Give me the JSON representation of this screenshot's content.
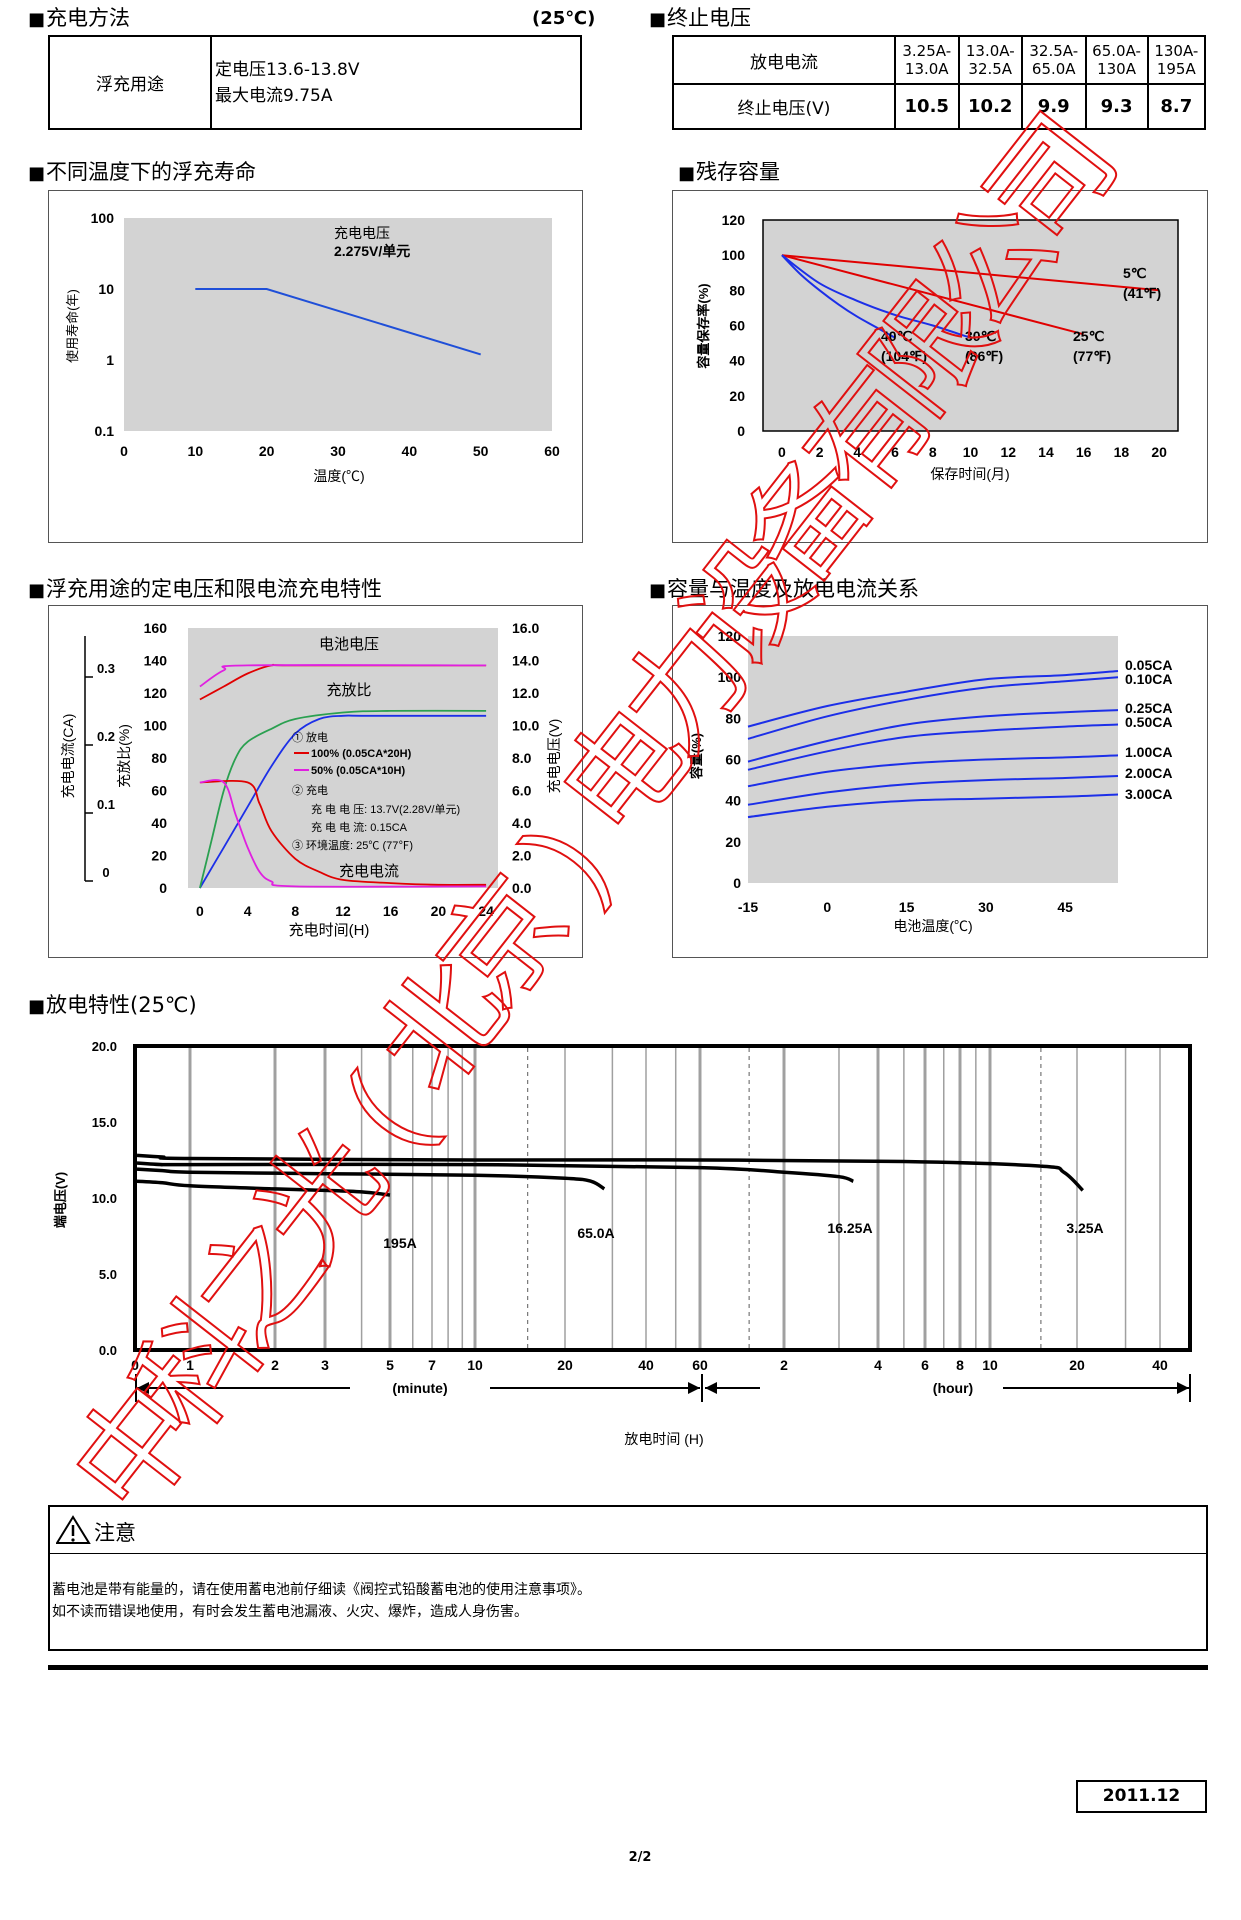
{
  "charge_method": {
    "title": "充电方法",
    "temp": "(25℃)",
    "row_label": "浮充用途",
    "voltage": "定电压13.6-13.8V",
    "max_current": "最大电流9.75A"
  },
  "cutoff": {
    "title": "终止电压",
    "col1_label": "放电电流",
    "row2_label": "终止电压(V)",
    "ranges": [
      "3.25A-13.0A",
      "13.0A-32.5A",
      "32.5A-65.0A",
      "65.0A-130A",
      "130A-195A"
    ],
    "voltages": [
      "10.5",
      "10.2",
      "9.9",
      "9.3",
      "8.7"
    ]
  },
  "titles": {
    "float_life": "不同温度下的浮充寿命",
    "residual": "残存容量",
    "float_charge": "浮充用途的定电压和限电流充电特性",
    "capacity_temp": "容量与温度及放电电流关系",
    "discharge": "放电特性(25℃)"
  },
  "chart_data": [
    {
      "type": "line",
      "title": "不同温度下的浮充寿命",
      "xlabel": "温度(℃)",
      "ylabel": "使用寿命(年)",
      "x_ticks": [
        "0",
        "10",
        "20",
        "30",
        "40",
        "50",
        "60"
      ],
      "y_ticks": [
        "0.1",
        "1",
        "10",
        "100"
      ],
      "xlim": [
        0,
        60
      ],
      "ylim": [
        0.1,
        100
      ],
      "y_scale": "log",
      "annotation": "充电电压",
      "annotation2": "2.275V/单元",
      "series": [
        {
          "x": [
            10,
            20,
            50
          ],
          "y": [
            10,
            10,
            1.2
          ],
          "color": "#1f4fd8"
        }
      ]
    },
    {
      "type": "line",
      "title": "残存容量",
      "xlabel": "保存时间(月)",
      "ylabel": "容量保存率(%)",
      "x_ticks": [
        "0",
        "2",
        "4",
        "6",
        "8",
        "10",
        "12",
        "14",
        "16",
        "18",
        "20"
      ],
      "y_ticks": [
        "0",
        "20",
        "40",
        "60",
        "80",
        "100",
        "120"
      ],
      "xlim": [
        -1,
        21
      ],
      "ylim": [
        0,
        120
      ],
      "series": [
        {
          "name": "5℃",
          "name2": "(41℉)",
          "color": "#e00000",
          "x": [
            0,
            20
          ],
          "y": [
            100,
            80
          ]
        },
        {
          "name": "25℃",
          "name2": "(77℉)",
          "color": "#e00000",
          "x": [
            0,
            16
          ],
          "y": [
            100,
            55
          ]
        },
        {
          "name": "30℃",
          "name2": "(86℉)",
          "color": "#1c2fe8",
          "x": [
            0,
            2,
            4,
            6,
            8,
            10
          ],
          "y": [
            100,
            84,
            74,
            66,
            60,
            53
          ]
        },
        {
          "name": "40℃",
          "name2": "(104℉)",
          "color": "#1c2fe8",
          "x": [
            0,
            1,
            2,
            3,
            4,
            5,
            6
          ],
          "y": [
            100,
            89,
            80,
            72,
            65,
            59,
            53
          ]
        }
      ]
    },
    {
      "type": "line",
      "title": "浮充用途的定电压和限电流充电特性",
      "xlabel": "充电时间(H)",
      "ylabel_left_current": "充电电流(CA)",
      "ylabel_left_ratio": "充放比(%)",
      "ylabel_right": "充电电压(V)",
      "x_ticks": [
        "0",
        "4",
        "8",
        "12",
        "16",
        "20",
        "24"
      ],
      "ratio_ticks": [
        "0",
        "20",
        "40",
        "60",
        "80",
        "100",
        "120",
        "140",
        "160"
      ],
      "current_ticks": [
        "0",
        "0.1",
        "0.2",
        "0.3"
      ],
      "voltage_ticks": [
        "0.0",
        "2.0",
        "4.0",
        "6.0",
        "8.0",
        "10.0",
        "12.0",
        "14.0",
        "16.0"
      ],
      "xlim": [
        -1,
        25
      ],
      "ylim_ratio": [
        0,
        160
      ],
      "label_voltage": "电池电压",
      "label_ratio": "充放比",
      "label_current": "充电电流",
      "legend": {
        "l1": "① 放电",
        "l2": "100% (0.05CA*20H)",
        "l3": "50% (0.05CA*10H)",
        "l4": "② 充电",
        "l5": "充 电 电 压: 13.7V(2.28V/单元)",
        "l6": "充 电 电 流: 0.15CA",
        "l7": "③ 环境温度: 25℃ (77℉)"
      },
      "series": [
        {
          "role": "battery voltage 100%",
          "color": "#e00000",
          "x": [
            0,
            2,
            4,
            6,
            8,
            24
          ],
          "y": [
            116,
            124,
            132,
            137,
            137,
            137
          ]
        },
        {
          "role": "battery voltage 50%",
          "color": "#e020e0",
          "x": [
            0,
            2,
            4,
            24
          ],
          "y": [
            124,
            134,
            137,
            137
          ]
        },
        {
          "role": "charge ratio 100%",
          "color": "#1c2fe8",
          "x": [
            0,
            2,
            4,
            6,
            8,
            10,
            12,
            14,
            24
          ],
          "y": [
            0,
            25,
            50,
            75,
            95,
            104,
            106,
            106,
            106
          ]
        },
        {
          "role": "charge ratio 50%",
          "color": "#2aa050",
          "x": [
            0,
            1,
            2,
            3,
            4,
            6,
            8,
            12,
            16,
            24
          ],
          "y": [
            0,
            30,
            60,
            80,
            90,
            98,
            104,
            108,
            109,
            109
          ]
        },
        {
          "role": "charge current 100%",
          "color": "#e00000",
          "x": [
            0,
            4,
            5,
            6,
            8,
            10,
            12,
            16,
            20,
            24
          ],
          "y": [
            65,
            65,
            52,
            35,
            18,
            10,
            5,
            3,
            2,
            2
          ]
        },
        {
          "role": "charge current 50%",
          "color": "#e020e0",
          "x": [
            0,
            2,
            3,
            4,
            5,
            6,
            8,
            24
          ],
          "y": [
            65,
            65,
            45,
            25,
            10,
            4,
            1,
            1
          ]
        }
      ]
    },
    {
      "type": "line",
      "title": "容量与温度及放电电流关系",
      "xlabel": "电池温度(℃)",
      "ylabel": "容量(%)",
      "x_ticks": [
        "-15",
        "0",
        "15",
        "30",
        "45"
      ],
      "y_ticks": [
        "0",
        "20",
        "40",
        "60",
        "80",
        "100",
        "120"
      ],
      "xlim": [
        -15,
        55
      ],
      "ylim": [
        0,
        120
      ],
      "series": [
        {
          "name": "0.05CA",
          "color": "#1c2fe8",
          "x": [
            -15,
            0,
            15,
            30,
            45,
            55
          ],
          "y": [
            76,
            86,
            93,
            99,
            101,
            103
          ]
        },
        {
          "name": "0.10CA",
          "color": "#1c2fe8",
          "x": [
            -15,
            0,
            15,
            30,
            45,
            55
          ],
          "y": [
            70,
            81,
            89,
            95,
            98,
            100
          ]
        },
        {
          "name": "0.25CA",
          "color": "#1c2fe8",
          "x": [
            -15,
            0,
            15,
            30,
            45,
            55
          ],
          "y": [
            59,
            69,
            77,
            81,
            83,
            84
          ]
        },
        {
          "name": "0.50CA",
          "color": "#1c2fe8",
          "x": [
            -15,
            0,
            15,
            30,
            45,
            55
          ],
          "y": [
            55,
            64,
            71,
            74,
            76,
            77
          ]
        },
        {
          "name": "1.00CA",
          "color": "#1c2fe8",
          "x": [
            -15,
            0,
            15,
            30,
            45,
            55
          ],
          "y": [
            47,
            54,
            58,
            60,
            61,
            62
          ]
        },
        {
          "name": "2.00CA",
          "color": "#1c2fe8",
          "x": [
            -15,
            0,
            15,
            30,
            45,
            55
          ],
          "y": [
            38,
            44,
            48,
            50,
            51,
            52
          ]
        },
        {
          "name": "3.00CA",
          "color": "#1c2fe8",
          "x": [
            -15,
            0,
            15,
            30,
            45,
            55
          ],
          "y": [
            32,
            37,
            40,
            41,
            42,
            43
          ]
        }
      ]
    },
    {
      "type": "line",
      "title": "放电特性(25℃)",
      "xlabel": "放电时间 (H)",
      "ylabel": "端电压(V)",
      "x_scale": "log",
      "x_ticks_minute": [
        "0",
        "1",
        "2",
        "3",
        "5",
        "7",
        "10",
        "20",
        "40",
        "60"
      ],
      "x_ticks_hour": [
        "2",
        "4",
        "6",
        "8",
        "10",
        "20",
        "40"
      ],
      "unit_minute": "(minute)",
      "unit_hour": "(hour)",
      "y_ticks": [
        "0.0",
        "5.0",
        "10.0",
        "15.0",
        "20.0"
      ],
      "ylim": [
        0,
        20
      ],
      "series": [
        {
          "name": "195A",
          "color": "#000000",
          "x_min": [
            0.5,
            1,
            2,
            3,
            4,
            5
          ],
          "y": [
            11.0,
            10.8,
            10.6,
            10.5,
            10.4,
            10.2
          ]
        },
        {
          "name": "65.0A",
          "color": "#000000",
          "x_min": [
            0.5,
            1,
            3,
            10,
            20,
            25,
            28
          ],
          "y": [
            11.8,
            11.7,
            11.6,
            11.5,
            11.3,
            11.1,
            10.6
          ]
        },
        {
          "name": "16.25A",
          "color": "#000000",
          "x_min": [
            0.5,
            1,
            10,
            60,
            120,
            180,
            200
          ],
          "y": [
            12.2,
            12.2,
            12.2,
            12.0,
            11.7,
            11.4,
            11.1
          ]
        },
        {
          "name": "3.25A",
          "color": "#000000",
          "x_min": [
            0.5,
            1,
            10,
            60,
            300,
            900,
            1080,
            1260
          ],
          "y": [
            12.7,
            12.6,
            12.5,
            12.5,
            12.4,
            12.1,
            11.7,
            10.5
          ]
        }
      ]
    }
  ],
  "notice": {
    "title": "注意",
    "line1": "蓄电池是带有能量的，请在使用蓄电池前仔细读《阀控式铅酸蓄电池的使用注意事项》。",
    "line2": "如不读而错误地使用，有时会发生蓄电池漏液、火灾、爆炸，造成人身伤害。"
  },
  "date": "2011.12",
  "page": "2/2",
  "watermark": "中科之光(北京)电力设备有限公司"
}
